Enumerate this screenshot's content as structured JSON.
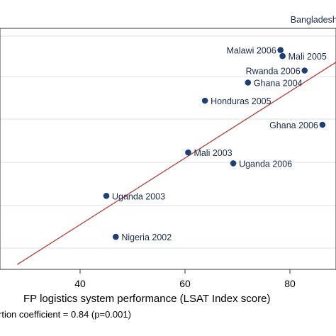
{
  "chart_data": {
    "type": "scatter",
    "xlabel": "FP logistics system performance (LSAT Index score)",
    "x_ticks": [
      40,
      60,
      80
    ],
    "xlim": [
      26,
      91
    ],
    "ylim": [
      0,
      1
    ],
    "note": "rtion coefficient = 0.84 (p=0.001)",
    "colors": {
      "point": "#1f3f73",
      "fit_line": "#b4403a",
      "grid": "#d9e2ea",
      "background": "#ffffff"
    },
    "points": [
      {
        "label": "Bangladesh",
        "x": 92.0,
        "y": 0.95
      },
      {
        "label": "Malawi 2006",
        "x": 78.2,
        "y": 0.91
      },
      {
        "label": "Mali 2005",
        "x": 78.6,
        "y": 0.885
      },
      {
        "label": "Rwanda 2006",
        "x": 82.8,
        "y": 0.825
      },
      {
        "label": "Ghana 2004",
        "x": 72.0,
        "y": 0.775
      },
      {
        "label": "Honduras 2005",
        "x": 63.8,
        "y": 0.7
      },
      {
        "label": "Ghana 2006",
        "x": 86.2,
        "y": 0.6
      },
      {
        "label": "Mali 2003",
        "x": 60.6,
        "y": 0.485
      },
      {
        "label": "Uganda 2006",
        "x": 69.2,
        "y": 0.44
      },
      {
        "label": "Uganda 2003",
        "x": 45.0,
        "y": 0.305
      },
      {
        "label": "Nigeria 2002",
        "x": 46.8,
        "y": 0.135
      }
    ],
    "fit_line": {
      "x": [
        28,
        91
      ],
      "y": [
        0.02,
        0.89
      ]
    }
  }
}
